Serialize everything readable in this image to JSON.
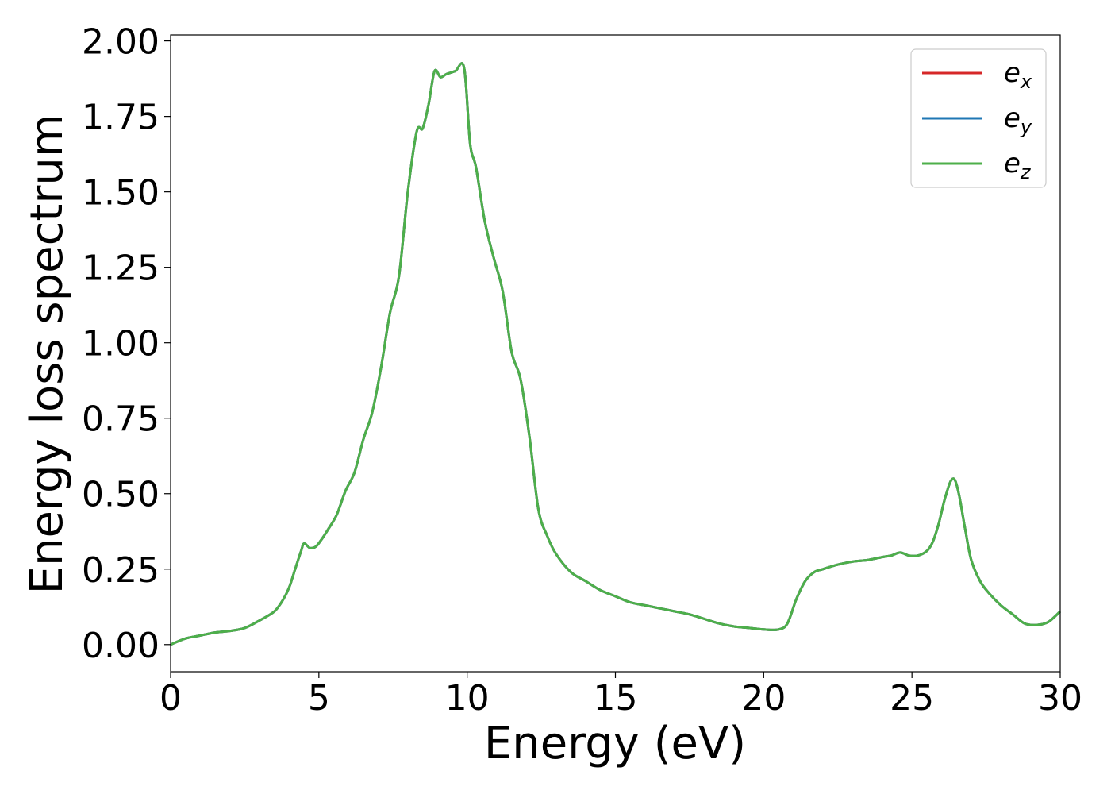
{
  "chart_data": {
    "type": "line",
    "title": "",
    "xlabel": "Energy (eV)",
    "ylabel": "Energy loss spectrum",
    "xlim": [
      0,
      30
    ],
    "ylim": [
      -0.09,
      2.02
    ],
    "xticks": [
      "0",
      "5",
      "10",
      "15",
      "20",
      "25",
      "30"
    ],
    "yticks": [
      "0.00",
      "0.25",
      "0.50",
      "0.75",
      "1.00",
      "1.25",
      "1.50",
      "1.75",
      "2.00"
    ],
    "grid": false,
    "legend_position": "top-right",
    "x": [
      0,
      0.5,
      1,
      1.5,
      2,
      2.5,
      3,
      3.5,
      3.8,
      4,
      4.2,
      4.4,
      4.5,
      4.7,
      4.9,
      5.1,
      5.3,
      5.6,
      5.9,
      6.2,
      6.5,
      6.8,
      7.1,
      7.4,
      7.7,
      8,
      8.3,
      8.5,
      8.7,
      8.9,
      9.1,
      9.3,
      9.6,
      9.9,
      10.1,
      10.3,
      10.6,
      10.9,
      11.2,
      11.5,
      11.8,
      12.1,
      12.4,
      12.7,
      13,
      13.5,
      14,
      14.5,
      15,
      15.5,
      16,
      16.5,
      17,
      17.5,
      18,
      18.5,
      19,
      19.5,
      20,
      20.5,
      20.8,
      21.1,
      21.4,
      21.7,
      22,
      22.5,
      23,
      23.5,
      24,
      24.3,
      24.6,
      24.9,
      25.2,
      25.5,
      25.7,
      25.9,
      26.1,
      26.3,
      26.45,
      26.6,
      26.8,
      27,
      27.3,
      27.6,
      28,
      28.4,
      28.8,
      29.2,
      29.6,
      30
    ],
    "series": [
      {
        "name": "e_x",
        "label_base": "e",
        "label_sub": "x",
        "color": "#d62728",
        "values": [
          0.0,
          0.02,
          0.03,
          0.04,
          0.045,
          0.055,
          0.08,
          0.11,
          0.15,
          0.19,
          0.25,
          0.31,
          0.335,
          0.32,
          0.325,
          0.35,
          0.38,
          0.43,
          0.51,
          0.57,
          0.68,
          0.77,
          0.92,
          1.1,
          1.22,
          1.5,
          1.7,
          1.71,
          1.79,
          1.9,
          1.88,
          1.89,
          1.9,
          1.91,
          1.66,
          1.58,
          1.4,
          1.28,
          1.17,
          0.97,
          0.88,
          0.69,
          0.45,
          0.36,
          0.3,
          0.24,
          0.21,
          0.18,
          0.16,
          0.14,
          0.13,
          0.12,
          0.11,
          0.1,
          0.085,
          0.07,
          0.06,
          0.055,
          0.05,
          0.05,
          0.07,
          0.15,
          0.21,
          0.24,
          0.25,
          0.265,
          0.275,
          0.28,
          0.29,
          0.295,
          0.305,
          0.295,
          0.295,
          0.31,
          0.34,
          0.4,
          0.48,
          0.54,
          0.545,
          0.49,
          0.38,
          0.28,
          0.21,
          0.17,
          0.13,
          0.1,
          0.07,
          0.065,
          0.075,
          0.11
        ]
      },
      {
        "name": "e_y",
        "label_base": "e",
        "label_sub": "y",
        "color": "#1f77b4",
        "values": [
          0.0,
          0.02,
          0.03,
          0.04,
          0.045,
          0.055,
          0.08,
          0.11,
          0.15,
          0.19,
          0.25,
          0.31,
          0.335,
          0.32,
          0.325,
          0.35,
          0.38,
          0.43,
          0.51,
          0.57,
          0.68,
          0.77,
          0.92,
          1.1,
          1.22,
          1.5,
          1.7,
          1.71,
          1.79,
          1.9,
          1.88,
          1.89,
          1.9,
          1.91,
          1.66,
          1.58,
          1.4,
          1.28,
          1.17,
          0.97,
          0.88,
          0.69,
          0.45,
          0.36,
          0.3,
          0.24,
          0.21,
          0.18,
          0.16,
          0.14,
          0.13,
          0.12,
          0.11,
          0.1,
          0.085,
          0.07,
          0.06,
          0.055,
          0.05,
          0.05,
          0.07,
          0.15,
          0.21,
          0.24,
          0.25,
          0.265,
          0.275,
          0.28,
          0.29,
          0.295,
          0.305,
          0.295,
          0.295,
          0.31,
          0.34,
          0.4,
          0.48,
          0.54,
          0.545,
          0.49,
          0.38,
          0.28,
          0.21,
          0.17,
          0.13,
          0.1,
          0.07,
          0.065,
          0.075,
          0.11
        ]
      },
      {
        "name": "e_z",
        "label_base": "e",
        "label_sub": "z",
        "color": "#4daf4a",
        "values": [
          0.0,
          0.02,
          0.03,
          0.04,
          0.045,
          0.055,
          0.08,
          0.11,
          0.15,
          0.19,
          0.25,
          0.31,
          0.335,
          0.32,
          0.325,
          0.35,
          0.38,
          0.43,
          0.51,
          0.57,
          0.68,
          0.77,
          0.92,
          1.1,
          1.22,
          1.5,
          1.7,
          1.71,
          1.79,
          1.9,
          1.88,
          1.89,
          1.9,
          1.91,
          1.66,
          1.58,
          1.4,
          1.28,
          1.17,
          0.97,
          0.88,
          0.69,
          0.45,
          0.36,
          0.3,
          0.24,
          0.21,
          0.18,
          0.16,
          0.14,
          0.13,
          0.12,
          0.11,
          0.1,
          0.085,
          0.07,
          0.06,
          0.055,
          0.05,
          0.05,
          0.07,
          0.15,
          0.21,
          0.24,
          0.25,
          0.265,
          0.275,
          0.28,
          0.29,
          0.295,
          0.305,
          0.295,
          0.295,
          0.31,
          0.34,
          0.4,
          0.48,
          0.54,
          0.545,
          0.49,
          0.38,
          0.28,
          0.21,
          0.17,
          0.13,
          0.1,
          0.07,
          0.065,
          0.075,
          0.11
        ]
      }
    ]
  }
}
